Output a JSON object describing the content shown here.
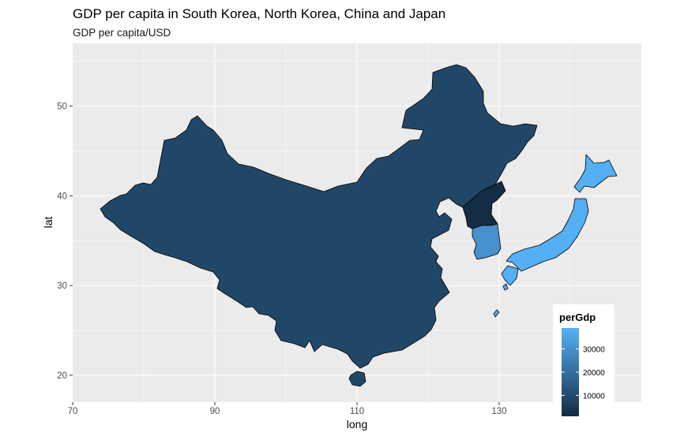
{
  "chart_data": {
    "type": "map",
    "title": "GDP per capita in South Korea, North Korea, China and Japan",
    "subtitle": "GDP per capita/USD",
    "xlabel": "long",
    "ylabel": "lat",
    "xlim": [
      70,
      150
    ],
    "ylim": [
      17,
      57
    ],
    "x_ticks": [
      70,
      90,
      110,
      130
    ],
    "y_ticks": [
      20,
      30,
      40,
      50
    ],
    "grid": true,
    "legend": {
      "title": "perGdp",
      "placement": "bottom-right",
      "ticks": [
        10000,
        20000,
        30000
      ],
      "range": [
        1000,
        39000
      ],
      "colors": [
        "#132B43",
        "#56B1F7"
      ]
    },
    "regions": [
      {
        "name": "China",
        "value": 8800
      },
      {
        "name": "North Korea",
        "value": 1300
      },
      {
        "name": "South Korea",
        "value": 29700
      },
      {
        "name": "Japan",
        "value": 38400
      }
    ]
  }
}
